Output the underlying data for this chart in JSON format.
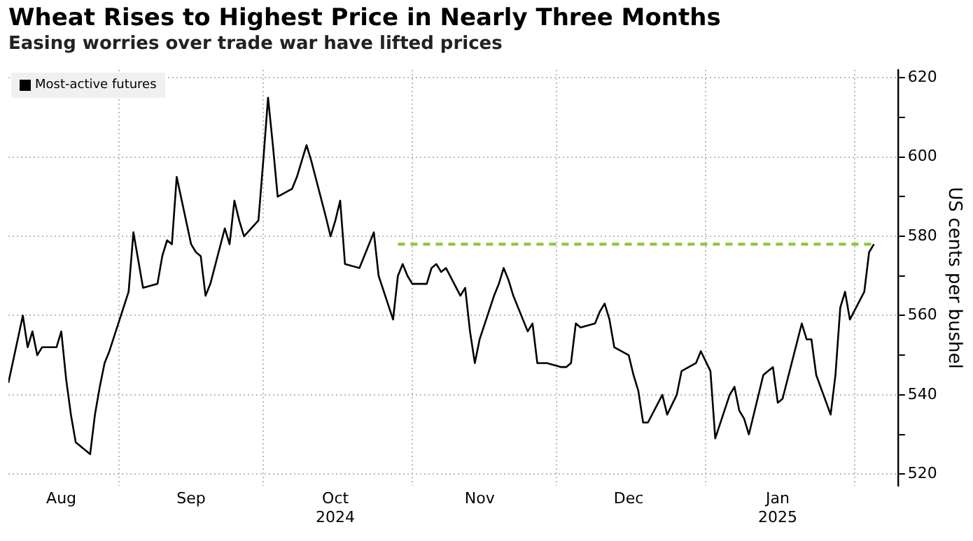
{
  "chart_data": {
    "type": "line",
    "title": "Wheat Rises to Highest Price in Nearly Three Months",
    "subtitle": "Easing worries over trade war have lifted prices",
    "ylabel": "US cents per bushel",
    "x": [
      "2024-08-09",
      "2024-08-12",
      "2024-08-13",
      "2024-08-14",
      "2024-08-15",
      "2024-08-16",
      "2024-08-19",
      "2024-08-20",
      "2024-08-21",
      "2024-08-22",
      "2024-08-23",
      "2024-08-26",
      "2024-08-27",
      "2024-08-28",
      "2024-08-29",
      "2024-08-30",
      "2024-09-03",
      "2024-09-04",
      "2024-09-05",
      "2024-09-06",
      "2024-09-09",
      "2024-09-10",
      "2024-09-11",
      "2024-09-12",
      "2024-09-13",
      "2024-09-16",
      "2024-09-17",
      "2024-09-18",
      "2024-09-19",
      "2024-09-20",
      "2024-09-23",
      "2024-09-24",
      "2024-09-25",
      "2024-09-26",
      "2024-09-27",
      "2024-09-30",
      "2024-10-01",
      "2024-10-02",
      "2024-10-03",
      "2024-10-04",
      "2024-10-07",
      "2024-10-08",
      "2024-10-09",
      "2024-10-10",
      "2024-10-11",
      "2024-10-14",
      "2024-10-15",
      "2024-10-16",
      "2024-10-17",
      "2024-10-18",
      "2024-10-21",
      "2024-10-22",
      "2024-10-23",
      "2024-10-24",
      "2024-10-25",
      "2024-10-28",
      "2024-10-29",
      "2024-10-30",
      "2024-10-31",
      "2024-11-01",
      "2024-11-04",
      "2024-11-05",
      "2024-11-06",
      "2024-11-07",
      "2024-11-08",
      "2024-11-11",
      "2024-11-12",
      "2024-11-13",
      "2024-11-14",
      "2024-11-15",
      "2024-11-18",
      "2024-11-19",
      "2024-11-20",
      "2024-11-21",
      "2024-11-22",
      "2024-11-25",
      "2024-11-26",
      "2024-11-27",
      "2024-11-29",
      "2024-12-02",
      "2024-12-03",
      "2024-12-04",
      "2024-12-05",
      "2024-12-06",
      "2024-12-09",
      "2024-12-10",
      "2024-12-11",
      "2024-12-12",
      "2024-12-13",
      "2024-12-16",
      "2024-12-17",
      "2024-12-18",
      "2024-12-19",
      "2024-12-20",
      "2024-12-23",
      "2024-12-24",
      "2024-12-26",
      "2024-12-27",
      "2024-12-30",
      "2024-12-31",
      "2025-01-02",
      "2025-01-03",
      "2025-01-06",
      "2025-01-07",
      "2025-01-08",
      "2025-01-09",
      "2025-01-10",
      "2025-01-13",
      "2025-01-14",
      "2025-01-15",
      "2025-01-16",
      "2025-01-17",
      "2025-01-21",
      "2025-01-22",
      "2025-01-23",
      "2025-01-24",
      "2025-01-27",
      "2025-01-28",
      "2025-01-29",
      "2025-01-30",
      "2025-01-31",
      "2025-02-03",
      "2025-02-04",
      "2025-02-05"
    ],
    "series": [
      {
        "name": "Most-active futures",
        "color": "#000000",
        "values": [
          543,
          560,
          552,
          556,
          550,
          552,
          552,
          556,
          544,
          535,
          528,
          525,
          535,
          542,
          548,
          551,
          566,
          581,
          574,
          567,
          568,
          575,
          579,
          578,
          595,
          578,
          576,
          575,
          565,
          568,
          582,
          578,
          589,
          584,
          580,
          584,
          599,
          615,
          603,
          590,
          592,
          595,
          599,
          603,
          599,
          585,
          580,
          584,
          589,
          573,
          572,
          575,
          578,
          581,
          570,
          559,
          570,
          573,
          570,
          568,
          568,
          572,
          573,
          571,
          572,
          565,
          567,
          556,
          548,
          554,
          565,
          568,
          572,
          569,
          565,
          556,
          558,
          548,
          548,
          547,
          547,
          548,
          558,
          557,
          558,
          561,
          563,
          559,
          552,
          550,
          545,
          541,
          533,
          533,
          540,
          535,
          540,
          546,
          548,
          551,
          546,
          529,
          540,
          542,
          536,
          534,
          530,
          545,
          546,
          547,
          538,
          539,
          558,
          554,
          554,
          545,
          535,
          545,
          562,
          566,
          559,
          566,
          576,
          578
        ]
      },
      {
        "type": "line",
        "color": "#8dc63f",
        "line_style": "dashed",
        "x": [
          "2024-10-29",
          "2025-02-05"
        ],
        "values": [
          578,
          578
        ]
      }
    ],
    "xlim": [
      "2024-08-09",
      "2025-02-10"
    ],
    "xticks": [
      {
        "value": "2024-08-20",
        "label": "Aug"
      },
      {
        "value": "2024-09-01",
        "label": null
      },
      {
        "value": "2024-09-16",
        "label": "Sep"
      },
      {
        "value": "2024-10-01",
        "label": null
      },
      {
        "value": "2024-10-16",
        "label": "Oct\n2024"
      },
      {
        "value": "2024-11-01",
        "label": null
      },
      {
        "value": "2024-11-15",
        "label": "Nov"
      },
      {
        "value": "2024-12-01",
        "label": null
      },
      {
        "value": "2024-12-16",
        "label": "Dec"
      },
      {
        "value": "2025-01-01",
        "label": null
      },
      {
        "value": "2025-01-16",
        "label": "Jan\n2025"
      },
      {
        "value": "2025-02-01",
        "label": null
      }
    ],
    "ylim": [
      517,
      622
    ],
    "yticks": [
      520,
      {
        "value": 530,
        "label": null
      },
      540,
      {
        "value": 550,
        "label": null
      },
      560,
      {
        "value": 570,
        "label": null
      },
      580,
      {
        "value": 590,
        "label": null
      },
      600,
      {
        "value": 610,
        "label": null
      },
      620
    ],
    "grid": true,
    "legend": "top left",
    "marker": "none",
    "line_style": "solid"
  }
}
